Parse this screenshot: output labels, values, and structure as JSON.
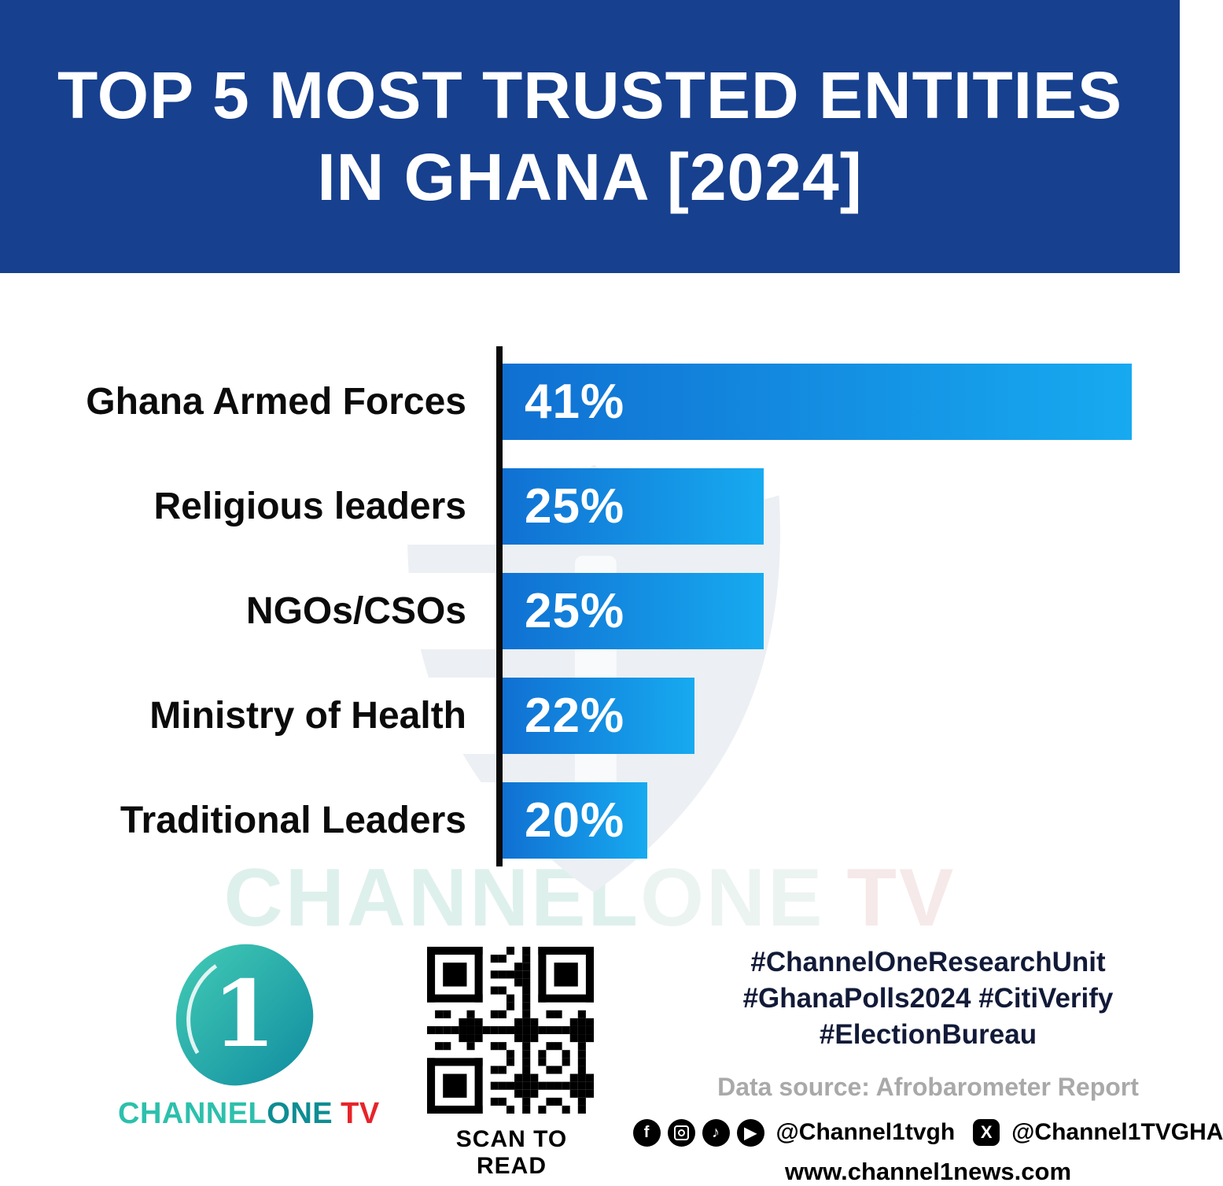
{
  "header": {
    "title_line1": "TOP 5 MOST TRUSTED ENTITIES",
    "title_line2": "IN GHANA [2024]"
  },
  "chart_data": {
    "type": "bar",
    "orientation": "horizontal",
    "title": "TOP 5 MOST TRUSTED ENTITIES IN GHANA [2024]",
    "categories": [
      "Ghana Armed Forces",
      "Religious leaders",
      "NGOs/CSOs",
      "Ministry of Health",
      "Traditional Leaders"
    ],
    "values": [
      41,
      25,
      25,
      22,
      20
    ],
    "value_labels": [
      "41%",
      "25%",
      "25%",
      "22%",
      "20%"
    ],
    "unit": "%",
    "xlabel": "",
    "ylabel": "",
    "xlim": [
      0,
      41
    ],
    "grid": false,
    "legend": false,
    "bar_color_gradient": [
      "#1070d2",
      "#17aaf0"
    ],
    "bar_width_percents": [
      100,
      41.5,
      41.5,
      30.5,
      23
    ]
  },
  "watermark": {
    "part1": "CHANNEL",
    "part2": "ONE",
    "part3": "TV"
  },
  "footer": {
    "logo": {
      "numeral": "1",
      "brand_channel": "CHANNEL",
      "brand_one": "ONE",
      "brand_tv": "TV"
    },
    "qr_caption": "SCAN TO READ",
    "hashtags": [
      "#ChannelOneResearchUnit",
      "#GhanaPolls2024 #CitiVerify",
      "#ElectionBureau"
    ],
    "data_source": "Data source: Afrobarometer Report",
    "social": {
      "icons": [
        {
          "name": "facebook-icon",
          "glyph": "f"
        },
        {
          "name": "instagram-icon",
          "glyph": "camera-outline"
        },
        {
          "name": "tiktok-icon",
          "glyph": "♪"
        },
        {
          "name": "youtube-icon",
          "glyph": "▶"
        }
      ],
      "x_icon_glyph": "X",
      "handle1": "@Channel1tvgh",
      "handle2": "@Channel1TVGHA"
    },
    "website": "www.channel1news.com"
  }
}
